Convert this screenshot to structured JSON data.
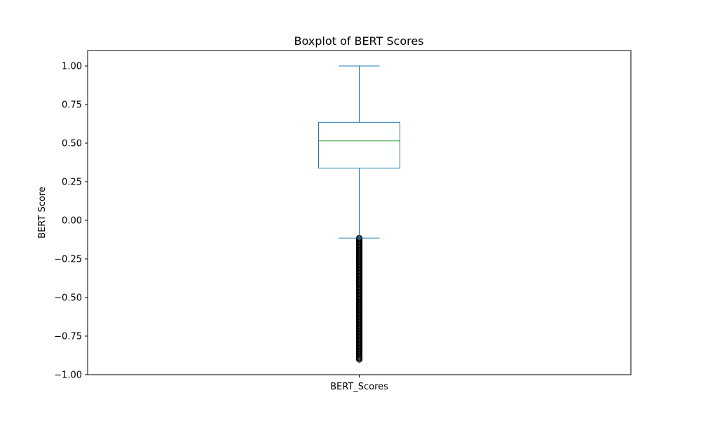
{
  "chart_data": {
    "type": "box",
    "title": "Boxplot of BERT Scores",
    "xlabel": "",
    "ylabel": "BERT Score",
    "categories": [
      "BERT_Scores"
    ],
    "ylim": [
      -1.0,
      1.1
    ],
    "yticks": [
      1.0,
      0.75,
      0.5,
      0.25,
      0.0,
      -0.25,
      -0.5,
      -0.75,
      -1.0
    ],
    "ytick_labels": [
      "1.00",
      "0.75",
      "0.50",
      "0.25",
      "0.00",
      "−0.25",
      "−0.50",
      "−0.75",
      "−1.00"
    ],
    "grid": false,
    "box": {
      "whisker_low": -0.115,
      "q1": 0.338,
      "median": 0.515,
      "q3": 0.635,
      "whisker_high": 1.0
    },
    "outlier_range": [
      -0.905,
      -0.115
    ],
    "colors": {
      "box": "#1f77b4",
      "median": "#2ca02c",
      "outliers": "#000000"
    }
  }
}
